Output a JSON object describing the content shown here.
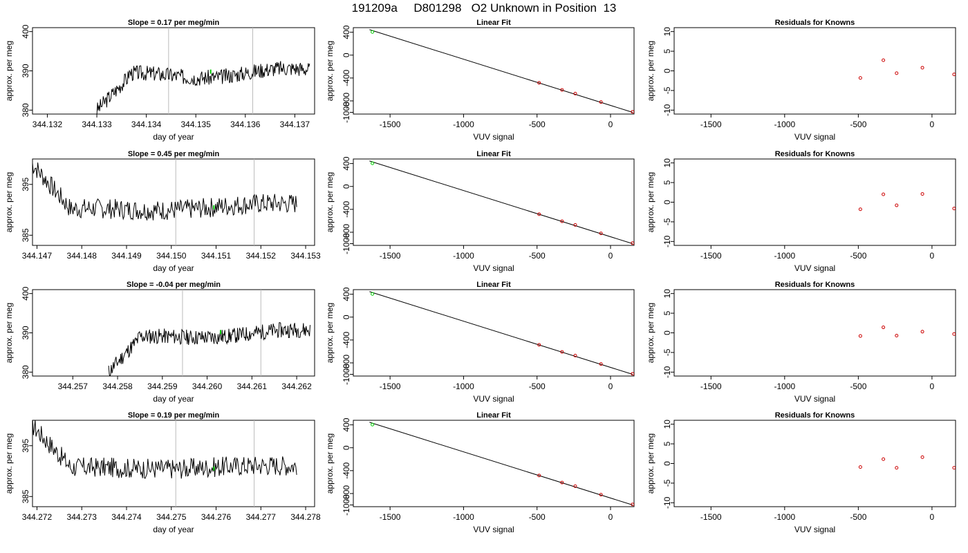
{
  "title": "191209a     D801298   O2 Unknown in Position  13",
  "colors": {
    "line": "#000000",
    "known_point": "#cc0000",
    "unknown_point": "#00cc00",
    "time_marker": "#bbbbbb"
  },
  "chart_data": [
    {
      "type": "line",
      "title": "Slope =  0.17  per meg/min",
      "xlabel": "day of year",
      "ylabel": "approx. per meg",
      "xlim": [
        344.1317,
        344.1374
      ],
      "ylim": [
        379,
        401
      ],
      "xticks": [
        "344.132",
        "344.133",
        "344.134",
        "344.135",
        "344.136",
        "344.137"
      ],
      "yticks": [
        "380",
        "390",
        "400"
      ],
      "markers_x": [
        344.13445,
        344.13615
      ],
      "unknown_point": {
        "x": 344.1353,
        "y": 389.8
      },
      "series": [
        {
          "start": 344.133,
          "end": 344.1373,
          "start_level": 380,
          "level": 388.5,
          "level2": 390,
          "trend": 1.8,
          "noise": 2.0,
          "seed": 3
        }
      ]
    },
    {
      "type": "scatter",
      "title": "Linear Fit",
      "xlabel": "VUV signal",
      "ylabel": "approx. per meg",
      "xlim": [
        -1750,
        160
      ],
      "ylim": [
        -1030,
        480
      ],
      "xticks": [
        "-1500",
        "-1000",
        "-500",
        "0"
      ],
      "yticks": [
        "-1000",
        "-800",
        "-400",
        "0",
        "400"
      ],
      "fit_line": {
        "x": [
          -1640,
          150
        ],
        "y": [
          445,
          -1000
        ]
      },
      "knowns": [
        {
          "x": -486,
          "y": -485
        },
        {
          "x": -330,
          "y": -608
        },
        {
          "x": -240,
          "y": -672
        },
        {
          "x": -65,
          "y": -820
        },
        {
          "x": 150,
          "y": -990
        }
      ],
      "unknown": {
        "x": -1620,
        "y": 405
      }
    },
    {
      "type": "scatter",
      "title": "Residuals for Knowns",
      "xlabel": "VUV signal",
      "ylabel": "approx. per meg",
      "xlim": [
        -1750,
        160
      ],
      "ylim": [
        -11,
        11
      ],
      "xticks": [
        "-1500",
        "-1000",
        "-500",
        "0"
      ],
      "yticks": [
        "-10",
        "-5",
        "0",
        "5",
        "10"
      ],
      "points": [
        {
          "x": -486,
          "y": -1.8
        },
        {
          "x": -330,
          "y": 2.7
        },
        {
          "x": -240,
          "y": -0.6
        },
        {
          "x": -65,
          "y": 0.8
        },
        {
          "x": 150,
          "y": -0.9
        }
      ]
    },
    {
      "type": "line",
      "title": "Slope =  0.45  per meg/min",
      "xlabel": "day of year",
      "ylabel": "approx. per meg",
      "xlim": [
        344.1469,
        344.1532
      ],
      "ylim": [
        383,
        400
      ],
      "xticks": [
        "344.147",
        "344.148",
        "344.149",
        "344.150",
        "344.151",
        "344.152",
        "344.153"
      ],
      "yticks": [
        "385",
        "395"
      ],
      "markers_x": [
        344.1501,
        344.15185
      ],
      "unknown_point": {
        "x": 344.15095,
        "y": 390.5
      },
      "series": [
        {
          "start": 344.1469,
          "end": 344.1528,
          "start_level": 399,
          "level": 389.8,
          "level2": 391,
          "trend": 0.8,
          "noise": 2.0,
          "seed": 7
        }
      ]
    },
    {
      "type": "scatter",
      "title": "Linear Fit",
      "xlabel": "VUV signal",
      "ylabel": "approx. per meg",
      "xlim": [
        -1750,
        160
      ],
      "ylim": [
        -1030,
        480
      ],
      "xticks": [
        "-1500",
        "-1000",
        "-500",
        "0"
      ],
      "yticks": [
        "-1000",
        "-800",
        "-400",
        "0",
        "400"
      ],
      "fit_line": {
        "x": [
          -1640,
          150
        ],
        "y": [
          445,
          -1000
        ]
      },
      "knowns": [
        {
          "x": -486,
          "y": -485
        },
        {
          "x": -330,
          "y": -608
        },
        {
          "x": -240,
          "y": -672
        },
        {
          "x": -65,
          "y": -820
        },
        {
          "x": 150,
          "y": -990
        }
      ],
      "unknown": {
        "x": -1620,
        "y": 405
      }
    },
    {
      "type": "scatter",
      "title": "Residuals for Knowns",
      "xlabel": "VUV signal",
      "ylabel": "approx. per meg",
      "xlim": [
        -1750,
        160
      ],
      "ylim": [
        -11,
        11
      ],
      "xticks": [
        "-1500",
        "-1000",
        "-500",
        "0"
      ],
      "yticks": [
        "-10",
        "-5",
        "0",
        "5",
        "10"
      ],
      "points": [
        {
          "x": -486,
          "y": -1.8
        },
        {
          "x": -330,
          "y": 2.0
        },
        {
          "x": -240,
          "y": -0.8
        },
        {
          "x": -65,
          "y": 2.1
        },
        {
          "x": 150,
          "y": -1.6
        }
      ]
    },
    {
      "type": "line",
      "title": "Slope =  -0.04  per meg/min",
      "xlabel": "day of year",
      "ylabel": "approx. per meg",
      "xlim": [
        344.2561,
        344.2624
      ],
      "ylim": [
        379,
        401
      ],
      "xticks": [
        "344.257",
        "344.258",
        "344.259",
        "344.260",
        "344.261",
        "344.262"
      ],
      "yticks": [
        "380",
        "390",
        "400"
      ],
      "markers_x": [
        344.25945,
        344.2612
      ],
      "unknown_point": {
        "x": 344.2603,
        "y": 390.2
      },
      "series": [
        {
          "start": 344.2578,
          "end": 344.2623,
          "start_level": 380,
          "level": 388.5,
          "level2": 390.5,
          "trend": 1.0,
          "noise": 2.0,
          "seed": 11
        }
      ]
    },
    {
      "type": "scatter",
      "title": "Linear Fit",
      "xlabel": "VUV signal",
      "ylabel": "approx. per meg",
      "xlim": [
        -1750,
        160
      ],
      "ylim": [
        -1030,
        480
      ],
      "xticks": [
        "-1500",
        "-1000",
        "-500",
        "0"
      ],
      "yticks": [
        "-1000",
        "-800",
        "-400",
        "0",
        "400"
      ],
      "fit_line": {
        "x": [
          -1640,
          150
        ],
        "y": [
          445,
          -1000
        ]
      },
      "knowns": [
        {
          "x": -486,
          "y": -485
        },
        {
          "x": -330,
          "y": -608
        },
        {
          "x": -240,
          "y": -672
        },
        {
          "x": -65,
          "y": -820
        },
        {
          "x": 150,
          "y": -990
        }
      ],
      "unknown": {
        "x": -1620,
        "y": 405
      }
    },
    {
      "type": "scatter",
      "title": "Residuals for Knowns",
      "xlabel": "VUV signal",
      "ylabel": "approx. per meg",
      "xlim": [
        -1750,
        160
      ],
      "ylim": [
        -11,
        11
      ],
      "xticks": [
        "-1500",
        "-1000",
        "-500",
        "0"
      ],
      "yticks": [
        "-10",
        "-5",
        "0",
        "5",
        "10"
      ],
      "points": [
        {
          "x": -486,
          "y": -0.8
        },
        {
          "x": -330,
          "y": 1.4
        },
        {
          "x": -240,
          "y": -0.7
        },
        {
          "x": -65,
          "y": 0.3
        },
        {
          "x": 150,
          "y": -0.3
        }
      ]
    },
    {
      "type": "line",
      "title": "Slope =  0.19  per meg/min",
      "xlabel": "day of year",
      "ylabel": "approx. per meg",
      "xlim": [
        344.2719,
        344.2782
      ],
      "ylim": [
        383,
        400
      ],
      "xticks": [
        "344.272",
        "344.273",
        "344.274",
        "344.275",
        "344.276",
        "344.277",
        "344.278"
      ],
      "yticks": [
        "385",
        "395"
      ],
      "markers_x": [
        344.2751,
        344.27685
      ],
      "unknown_point": {
        "x": 344.27595,
        "y": 390.5
      },
      "series": [
        {
          "start": 344.2719,
          "end": 344.2778,
          "start_level": 399,
          "level": 390.5,
          "level2": 391,
          "trend": 0.5,
          "noise": 2.0,
          "seed": 17
        }
      ]
    },
    {
      "type": "scatter",
      "title": "Linear Fit",
      "xlabel": "VUV signal",
      "ylabel": "approx. per meg",
      "xlim": [
        -1750,
        160
      ],
      "ylim": [
        -1030,
        480
      ],
      "xticks": [
        "-1500",
        "-1000",
        "-500",
        "0"
      ],
      "yticks": [
        "-1000",
        "-800",
        "-400",
        "0",
        "400"
      ],
      "fit_line": {
        "x": [
          -1640,
          150
        ],
        "y": [
          445,
          -1000
        ]
      },
      "knowns": [
        {
          "x": -486,
          "y": -485
        },
        {
          "x": -330,
          "y": -608
        },
        {
          "x": -240,
          "y": -672
        },
        {
          "x": -65,
          "y": -820
        },
        {
          "x": 150,
          "y": -990
        }
      ],
      "unknown": {
        "x": -1620,
        "y": 405
      }
    },
    {
      "type": "scatter",
      "title": "Residuals for Knowns",
      "xlabel": "VUV signal",
      "ylabel": "approx. per meg",
      "xlim": [
        -1750,
        160
      ],
      "ylim": [
        -11,
        11
      ],
      "xticks": [
        "-1500",
        "-1000",
        "-500",
        "0"
      ],
      "yticks": [
        "-10",
        "-5",
        "0",
        "5",
        "10"
      ],
      "points": [
        {
          "x": -486,
          "y": -0.9
        },
        {
          "x": -330,
          "y": 1.1
        },
        {
          "x": -240,
          "y": -1.1
        },
        {
          "x": -65,
          "y": 1.6
        },
        {
          "x": 150,
          "y": -1.1
        }
      ]
    }
  ]
}
